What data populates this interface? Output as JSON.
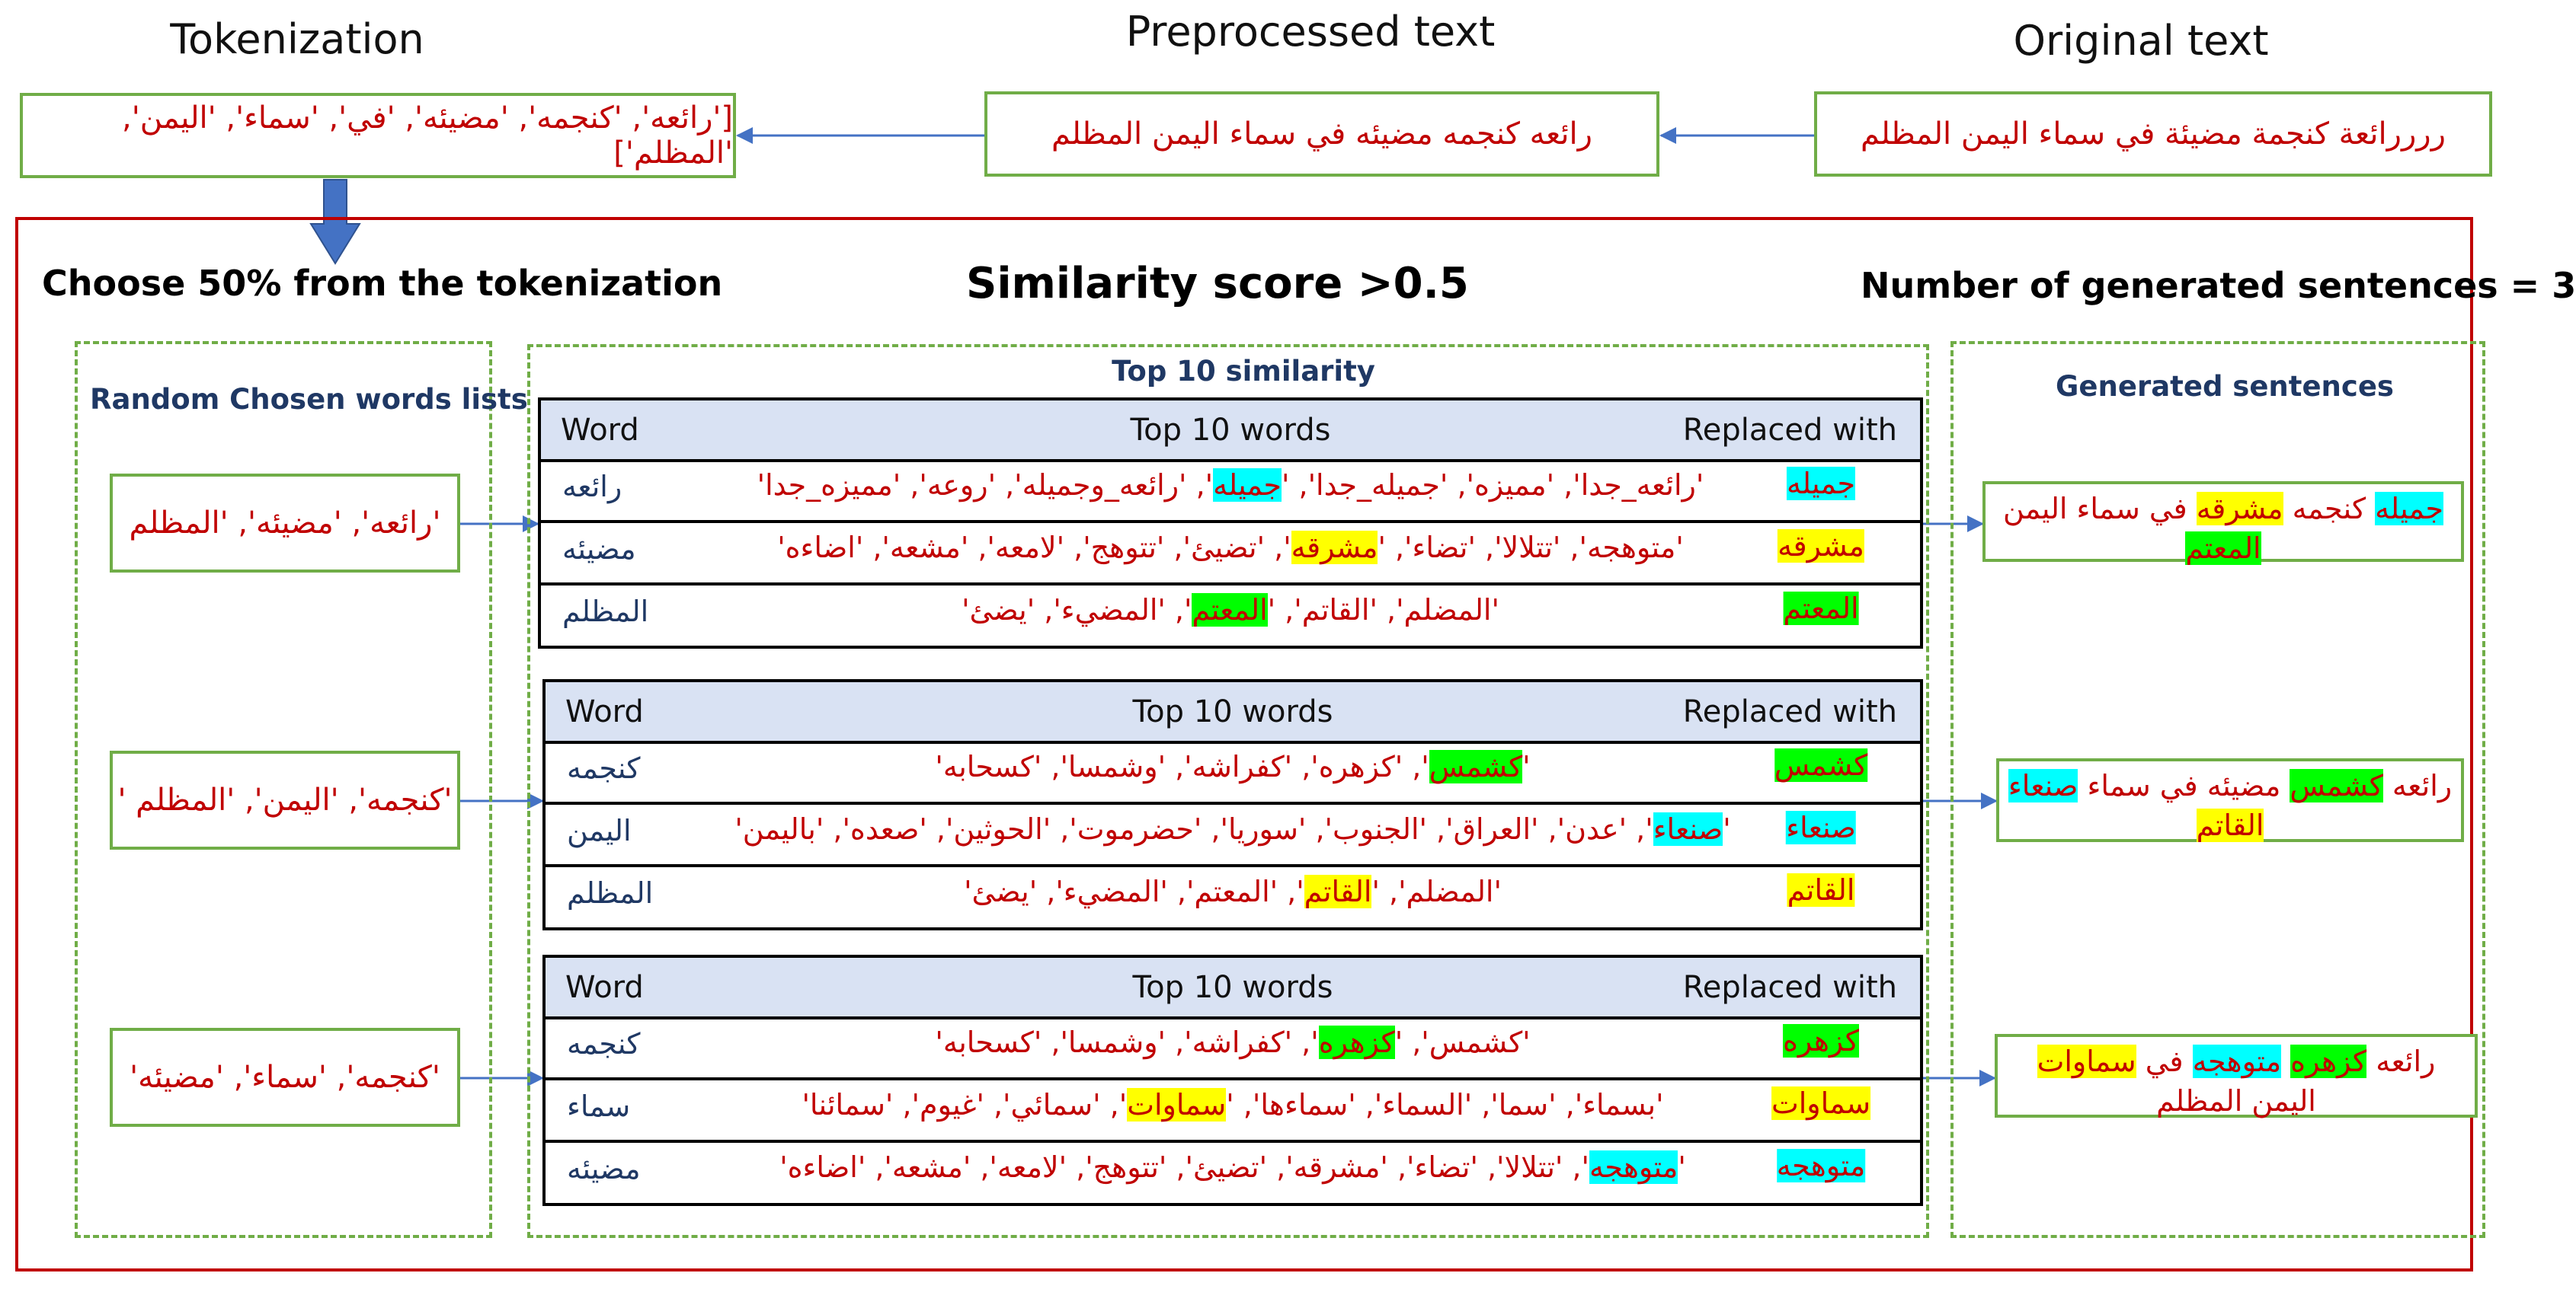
{
  "titles": {
    "tokenization": "Tokenization",
    "preprocessed": "Preprocessed text",
    "original": "Original text"
  },
  "top_boxes": {
    "tokenization": "['رائعه', 'كنجمه', 'مضيئه', 'في', 'سماء', 'اليمن', 'المظلم']",
    "preprocessed": "رائعه كنجمه مضيئه في سماء اليمن المظلم",
    "original": "ررررائعة كنجمة مضيئة في سماء اليمن المظلم"
  },
  "headers": {
    "choose": "Choose 50% from the tokenization",
    "similarity": "Similarity score >0.5",
    "number": "Number of generated sentences = 3"
  },
  "columns": {
    "random": "Random Chosen words lists",
    "top10": "Top 10 similarity",
    "generated": "Generated sentences"
  },
  "chosen_lists": [
    "'رائعه', 'مضيئه', 'المظلم",
    "'كنجمه', 'اليمن', 'المظلم '",
    "'كنجمه', 'سماء', 'مضيئه'"
  ],
  "table_headers": {
    "word": "Word",
    "top10": "Top 10 words",
    "replaced": "Replaced with"
  },
  "tables": [
    {
      "rows": [
        {
          "word": "رائعه",
          "list_before": "'رائعه_جدا', 'مميزه', 'جميله_جدا', '",
          "list_hl": "جميله",
          "list_after": "', 'رائعه_وجميله', 'روعه', 'مميزه_جدا'",
          "list_color": "cyan",
          "replaced": "جميله",
          "replaced_color": "cyan"
        },
        {
          "word": "مضيئه",
          "list_before": "'متوهجه', 'تتلالا', 'تضاء', '",
          "list_hl": "مشرقه",
          "list_after": "', 'تضيئ', 'تتوهج', 'لامعه', 'مشعه', 'اضاءه'",
          "list_color": "yellow",
          "replaced": "مشرقه",
          "replaced_color": "yellow"
        },
        {
          "word": "المظلم",
          "list_before": "'المضلم', 'القاتم', '",
          "list_hl": "المعتم",
          "list_after": "', 'المضيء', 'يضئ'",
          "list_color": "green",
          "replaced": "المعتم",
          "replaced_color": "green"
        }
      ]
    },
    {
      "rows": [
        {
          "word": "كنجمه",
          "list_before": "'",
          "list_hl": "كشمس",
          "list_after": "', 'كزهره', 'كفراشه', 'وشمسا', 'كسحابه'",
          "list_color": "green",
          "replaced": "كشمس",
          "replaced_color": "green"
        },
        {
          "word": "اليمن",
          "list_before": "'",
          "list_hl": "صنعاء",
          "list_after": "', 'عدن', 'العراق', 'الجنوب', 'سوريا', 'حضرموت', 'الحوثين', 'صعده', 'باليمن'",
          "list_color": "cyan",
          "replaced": "صنعاء",
          "replaced_color": "cyan"
        },
        {
          "word": "المظلم",
          "list_before": "'المضلم', '",
          "list_hl": "القاتم",
          "list_after": "', 'المعتم', 'المضيء', 'يضئ'",
          "list_color": "yellow",
          "replaced": "القاتم",
          "replaced_color": "yellow"
        }
      ]
    },
    {
      "rows": [
        {
          "word": "كنجمه",
          "list_before": "'كشمس', '",
          "list_hl": "كزهره",
          "list_after": "', 'كفراشه', 'وشمسا', 'كسحابه'",
          "list_color": "green",
          "replaced": "كزهره",
          "replaced_color": "green"
        },
        {
          "word": "سماء",
          "list_before": "'بسماء', 'سما', 'السماء', 'سماءها', '",
          "list_hl": "سماوات",
          "list_after": "', 'سمائي', 'غيوم', 'سمائنا'",
          "list_color": "yellow",
          "replaced": "سماوات",
          "replaced_color": "yellow"
        },
        {
          "word": "مضيئه",
          "list_before": "'",
          "list_hl": "متوهجه",
          "list_after": "', 'تتلالا', 'تضاء', 'مشرقه', 'تضيئ', 'تتوهج', 'لامعه', 'مشعه', 'اضاءه'",
          "list_color": "cyan",
          "replaced": "متوهجه",
          "replaced_color": "cyan"
        }
      ]
    }
  ],
  "generated": [
    {
      "line1": [
        {
          "t": "جميله",
          "c": "cyan"
        },
        {
          "t": " كنجمه ",
          "c": ""
        },
        {
          "t": "مشرقه",
          "c": "yellow"
        },
        {
          "t": " في سماء اليمن",
          "c": ""
        }
      ],
      "line2": [
        {
          "t": "المعتم",
          "c": "green"
        }
      ]
    },
    {
      "line1": [
        {
          "t": "رائعه ",
          "c": ""
        },
        {
          "t": "كشمس",
          "c": "green"
        },
        {
          "t": " مضيئه في سماء ",
          "c": ""
        },
        {
          "t": "صنعاء",
          "c": "cyan"
        }
      ],
      "line2": [
        {
          "t": "القاتم",
          "c": "yellow"
        }
      ]
    },
    {
      "line1": [
        {
          "t": "رائعه ",
          "c": ""
        },
        {
          "t": "كزهره",
          "c": "green"
        },
        {
          "t": " ",
          "c": ""
        },
        {
          "t": "متوهجه",
          "c": "cyan"
        },
        {
          "t": " في ",
          "c": ""
        },
        {
          "t": "سماوات",
          "c": "yellow"
        }
      ],
      "line2": [
        {
          "t": "اليمن المظلم",
          "c": ""
        }
      ]
    }
  ]
}
